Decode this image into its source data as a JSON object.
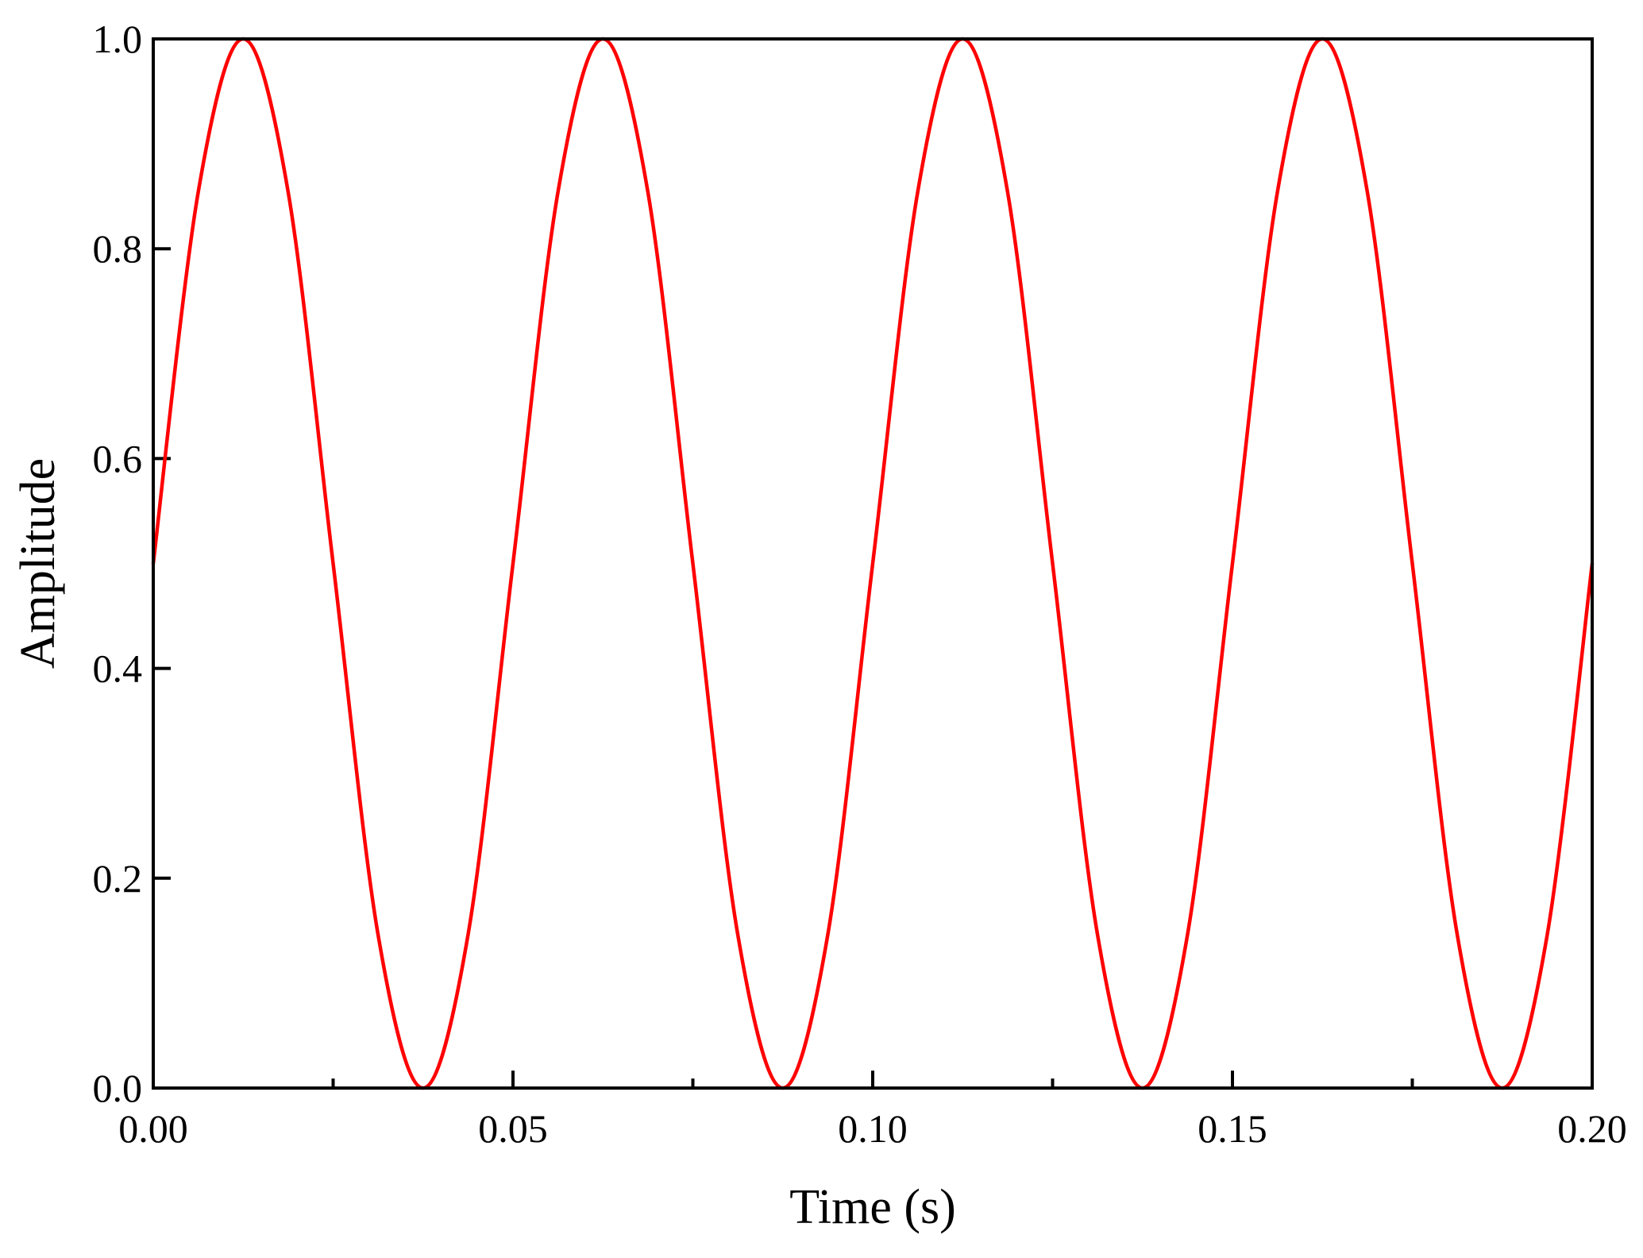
{
  "chart_data": {
    "type": "line",
    "title": "",
    "xlabel": "Time (s)",
    "ylabel": "Amplitude",
    "xlim": [
      0.0,
      0.2
    ],
    "ylim": [
      0.0,
      1.0
    ],
    "x_ticks": [
      0.0,
      0.05,
      0.1,
      0.15,
      0.2
    ],
    "x_tick_labels": [
      "0.00",
      "0.05",
      "0.10",
      "0.15",
      "0.20"
    ],
    "x_minor_ticks": [
      0.025,
      0.075,
      0.125,
      0.175
    ],
    "y_ticks": [
      0.0,
      0.2,
      0.4,
      0.6,
      0.8,
      1.0
    ],
    "y_tick_labels": [
      "0.0",
      "0.2",
      "0.4",
      "0.6",
      "0.8",
      "1.0"
    ],
    "grid": false,
    "legend": "none",
    "series": [
      {
        "color": "#ff0000",
        "x": [
          0.0,
          0.00625,
          0.0125,
          0.01875,
          0.025,
          0.03125,
          0.0375,
          0.04375,
          0.05,
          0.05625,
          0.0625,
          0.06875,
          0.075,
          0.08125,
          0.0875,
          0.09375,
          0.1,
          0.10625,
          0.1125,
          0.11875,
          0.125,
          0.13125,
          0.1375,
          0.14375,
          0.15,
          0.15625,
          0.1625,
          0.16875,
          0.175,
          0.18125,
          0.1875,
          0.19375,
          0.2
        ],
        "y": [
          0.5,
          0.854,
          1.0,
          0.854,
          0.5,
          0.146,
          0.0,
          0.146,
          0.5,
          0.854,
          1.0,
          0.854,
          0.5,
          0.146,
          0.0,
          0.146,
          0.5,
          0.854,
          1.0,
          0.854,
          0.5,
          0.146,
          0.0,
          0.146,
          0.5,
          0.854,
          1.0,
          0.854,
          0.5,
          0.146,
          0.0,
          0.146,
          0.5
        ]
      }
    ]
  }
}
